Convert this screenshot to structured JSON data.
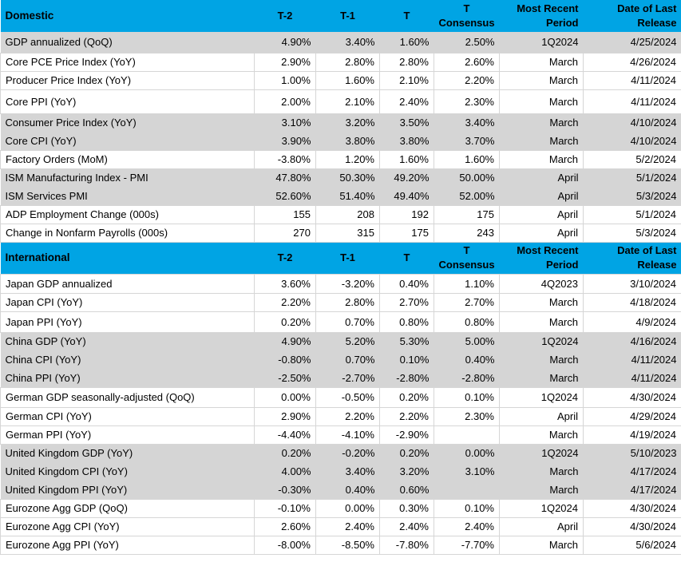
{
  "colors": {
    "header_bg": "#00A4E4",
    "shaded_row_bg": "#D5D5D5",
    "gridline": "#D6D6D6",
    "text": "#000000"
  },
  "columns": {
    "t2": "T-2",
    "t1": "T-1",
    "t": "T",
    "consensus": "T\nConsensus",
    "period": "Most Recent\nPeriod",
    "release": "Date of Last\nRelease"
  },
  "sections": [
    {
      "title": "Domestic",
      "rows": [
        {
          "label": "GDP annualized (QoQ)",
          "t2": "4.90%",
          "t1": "3.40%",
          "t": "1.60%",
          "consensus": "2.50%",
          "period": "1Q2024",
          "release": "4/25/2024",
          "shaded": true
        },
        {
          "label": "Core PCE Price Index (YoY)",
          "t2": "2.90%",
          "t1": "2.80%",
          "t": "2.80%",
          "consensus": "2.60%",
          "period": "March",
          "release": "4/26/2024",
          "shaded": false
        },
        {
          "label": "Producer Price Index (YoY)",
          "t2": "1.00%",
          "t1": "1.60%",
          "t": "2.10%",
          "consensus": "2.20%",
          "period": "March",
          "release": "4/11/2024",
          "shaded": false
        },
        {
          "label": "Core PPI (YoY)",
          "t2": "2.00%",
          "t1": "2.10%",
          "t": "2.40%",
          "consensus": "2.30%",
          "period": "March",
          "release": "4/11/2024",
          "shaded": false
        },
        {
          "label": "Consumer Price Index (YoY)",
          "t2": "3.10%",
          "t1": "3.20%",
          "t": "3.50%",
          "consensus": "3.40%",
          "period": "March",
          "release": "4/10/2024",
          "shaded": true
        },
        {
          "label": "Core CPI  (YoY)",
          "t2": "3.90%",
          "t1": "3.80%",
          "t": "3.80%",
          "consensus": "3.70%",
          "period": "March",
          "release": "4/10/2024",
          "shaded": true
        },
        {
          "label": "Factory Orders (MoM)",
          "t2": "-3.80%",
          "t1": "1.20%",
          "t": "1.60%",
          "consensus": "1.60%",
          "period": "March",
          "release": "5/2/2024",
          "shaded": false
        },
        {
          "label": "ISM Manufacturing Index - PMI",
          "t2": "47.80%",
          "t1": "50.30%",
          "t": "49.20%",
          "consensus": "50.00%",
          "period": "April",
          "release": "5/1/2024",
          "shaded": true
        },
        {
          "label": "ISM Services PMI",
          "t2": "52.60%",
          "t1": "51.40%",
          "t": "49.40%",
          "consensus": "52.00%",
          "period": "April",
          "release": "5/3/2024",
          "shaded": true
        },
        {
          "label": "ADP Employment Change (000s)",
          "t2": "155",
          "t1": "208",
          "t": "192",
          "consensus": "175",
          "period": "April",
          "release": "5/1/2024",
          "shaded": false
        },
        {
          "label": "Change in Nonfarm Payrolls (000s)",
          "t2": "270",
          "t1": "315",
          "t": "175",
          "consensus": "243",
          "period": "April",
          "release": "5/3/2024",
          "shaded": false
        }
      ]
    },
    {
      "title": "International",
      "rows": [
        {
          "label": "Japan GDP annualized",
          "t2": "3.60%",
          "t1": "-3.20%",
          "t": "0.40%",
          "consensus": "1.10%",
          "period": "4Q2023",
          "release": "3/10/2024",
          "shaded": false
        },
        {
          "label": "Japan CPI (YoY)",
          "t2": "2.20%",
          "t1": "2.80%",
          "t": "2.70%",
          "consensus": "2.70%",
          "period": "March",
          "release": "4/18/2024",
          "shaded": false
        },
        {
          "label": "Japan PPI (YoY)",
          "t2": "0.20%",
          "t1": "0.70%",
          "t": "0.80%",
          "consensus": "0.80%",
          "period": "March",
          "release": "4/9/2024",
          "shaded": false
        },
        {
          "label": "China GDP (YoY)",
          "t2": "4.90%",
          "t1": "5.20%",
          "t": "5.30%",
          "consensus": "5.00%",
          "period": "1Q2024",
          "release": "4/16/2024",
          "shaded": true
        },
        {
          "label": "China CPI (YoY)",
          "t2": "-0.80%",
          "t1": "0.70%",
          "t": "0.10%",
          "consensus": "0.40%",
          "period": "March",
          "release": "4/11/2024",
          "shaded": true
        },
        {
          "label": "China PPI (YoY)",
          "t2": "-2.50%",
          "t1": "-2.70%",
          "t": "-2.80%",
          "consensus": "-2.80%",
          "period": "March",
          "release": "4/11/2024",
          "shaded": true
        },
        {
          "label": "German GDP seasonally-adjusted (QoQ)",
          "t2": "0.00%",
          "t1": "-0.50%",
          "t": "0.20%",
          "consensus": "0.10%",
          "period": "1Q2024",
          "release": "4/30/2024",
          "shaded": false
        },
        {
          "label": "German CPI (YoY)",
          "t2": "2.90%",
          "t1": "2.20%",
          "t": "2.20%",
          "consensus": "2.30%",
          "period": "April",
          "release": "4/29/2024",
          "shaded": false
        },
        {
          "label": "German PPI (YoY)",
          "t2": "-4.40%",
          "t1": "-4.10%",
          "t": "-2.90%",
          "consensus": "",
          "period": "March",
          "release": "4/19/2024",
          "shaded": false
        },
        {
          "label": "United Kingdom GDP (YoY)",
          "t2": "0.20%",
          "t1": "-0.20%",
          "t": "0.20%",
          "consensus": "0.00%",
          "period": "1Q2024",
          "release": "5/10/2023",
          "shaded": true
        },
        {
          "label": "United Kingdom CPI (YoY)",
          "t2": "4.00%",
          "t1": "3.40%",
          "t": "3.20%",
          "consensus": "3.10%",
          "period": "March",
          "release": "4/17/2024",
          "shaded": true
        },
        {
          "label": "United Kingdom  PPI (YoY)",
          "t2": "-0.30%",
          "t1": "0.40%",
          "t": "0.60%",
          "consensus": "",
          "period": "March",
          "release": "4/17/2024",
          "shaded": true
        },
        {
          "label": "Eurozone Agg GDP (QoQ)",
          "t2": "-0.10%",
          "t1": "0.00%",
          "t": "0.30%",
          "consensus": "0.10%",
          "period": "1Q2024",
          "release": "4/30/2024",
          "shaded": false
        },
        {
          "label": "Eurozone Agg CPI (YoY)",
          "t2": "2.60%",
          "t1": "2.40%",
          "t": "2.40%",
          "consensus": "2.40%",
          "period": "April",
          "release": "4/30/2024",
          "shaded": false
        },
        {
          "label": "Eurozone Agg PPI (YoY)",
          "t2": "-8.00%",
          "t1": "-8.50%",
          "t": "-7.80%",
          "consensus": "-7.70%",
          "period": "March",
          "release": "5/6/2024",
          "shaded": false
        }
      ]
    }
  ]
}
